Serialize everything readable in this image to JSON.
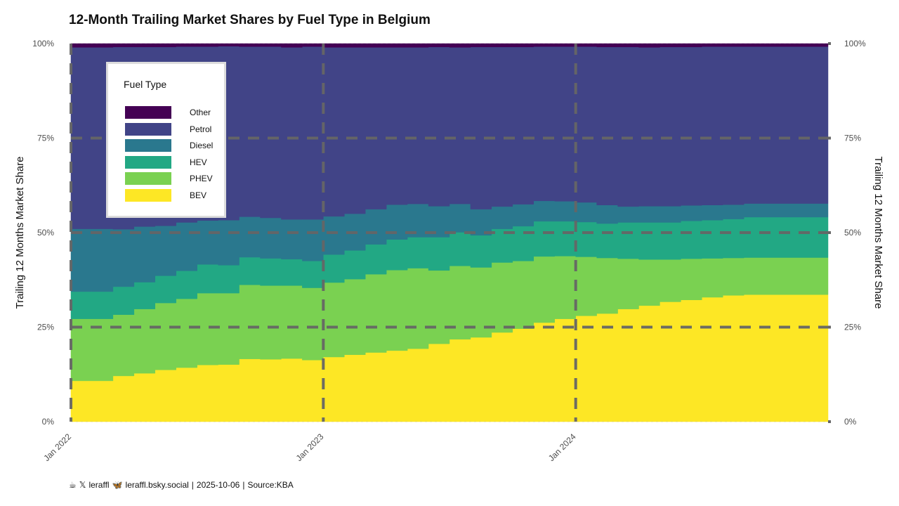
{
  "chart_data": {
    "type": "area",
    "title": "12-Month Trailing Market Shares by Fuel Type in Belgium",
    "ylabel": "Trailing 12 Months Market Share",
    "ylabel_right": "Trailing 12 Months Market Share",
    "ylim": [
      0,
      1
    ],
    "y_ticks": [
      "0%",
      "25%",
      "50%",
      "75%",
      "100%"
    ],
    "x_ticks": [
      "Jan 2022",
      "Jan 2023",
      "Jan 2024"
    ],
    "grid": true,
    "legend": {
      "title": "Fuel Type",
      "placement": "top-left",
      "entries": [
        "Other",
        "Petrol",
        "Diesel",
        "HEV",
        "PHEV",
        "BEV"
      ]
    },
    "x": [
      "2022-01",
      "2022-02",
      "2022-03",
      "2022-04",
      "2022-05",
      "2022-06",
      "2022-07",
      "2022-08",
      "2022-09",
      "2022-10",
      "2022-11",
      "2022-12",
      "2023-01",
      "2023-02",
      "2023-03",
      "2023-04",
      "2023-05",
      "2023-06",
      "2023-07",
      "2023-08",
      "2023-09",
      "2023-10",
      "2023-11",
      "2023-12",
      "2024-01",
      "2024-02",
      "2024-03",
      "2024-04",
      "2024-05",
      "2024-06",
      "2024-07",
      "2024-08",
      "2024-09",
      "2024-10",
      "2024-11",
      "2024-12"
    ],
    "series": [
      {
        "name": "BEV",
        "color": "#fde725",
        "values": [
          0.108,
          0.108,
          0.121,
          0.128,
          0.137,
          0.143,
          0.15,
          0.151,
          0.166,
          0.165,
          0.167,
          0.163,
          0.171,
          0.177,
          0.183,
          0.188,
          0.193,
          0.206,
          0.218,
          0.223,
          0.236,
          0.246,
          0.262,
          0.272,
          0.28,
          0.286,
          0.298,
          0.307,
          0.317,
          0.322,
          0.329,
          0.334,
          0.336,
          0.336,
          0.336,
          0.336
        ]
      },
      {
        "name": "PHEV",
        "color": "#7ad151",
        "values": [
          0.164,
          0.164,
          0.162,
          0.17,
          0.177,
          0.182,
          0.19,
          0.189,
          0.196,
          0.195,
          0.193,
          0.191,
          0.197,
          0.2,
          0.207,
          0.213,
          0.213,
          0.194,
          0.194,
          0.185,
          0.185,
          0.179,
          0.175,
          0.166,
          0.156,
          0.147,
          0.133,
          0.122,
          0.112,
          0.109,
          0.103,
          0.099,
          0.098,
          0.098,
          0.098,
          0.098
        ]
      },
      {
        "name": "HEV",
        "color": "#22a884",
        "values": [
          0.072,
          0.072,
          0.074,
          0.071,
          0.072,
          0.074,
          0.076,
          0.074,
          0.073,
          0.072,
          0.07,
          0.071,
          0.074,
          0.076,
          0.079,
          0.081,
          0.082,
          0.088,
          0.089,
          0.085,
          0.089,
          0.092,
          0.093,
          0.092,
          0.092,
          0.091,
          0.096,
          0.098,
          0.098,
          0.1,
          0.101,
          0.103,
          0.107,
          0.107,
          0.107,
          0.107
        ]
      },
      {
        "name": "Diesel",
        "color": "#2a788e",
        "values": [
          0.166,
          0.166,
          0.152,
          0.147,
          0.132,
          0.128,
          0.116,
          0.119,
          0.107,
          0.107,
          0.105,
          0.11,
          0.101,
          0.097,
          0.093,
          0.092,
          0.088,
          0.082,
          0.075,
          0.069,
          0.059,
          0.058,
          0.054,
          0.053,
          0.052,
          0.049,
          0.042,
          0.043,
          0.043,
          0.041,
          0.04,
          0.038,
          0.036,
          0.036,
          0.036,
          0.036
        ]
      },
      {
        "name": "Petrol",
        "color": "#414487",
        "values": [
          0.48,
          0.48,
          0.482,
          0.475,
          0.473,
          0.465,
          0.46,
          0.46,
          0.45,
          0.453,
          0.455,
          0.457,
          0.447,
          0.44,
          0.428,
          0.416,
          0.414,
          0.421,
          0.414,
          0.429,
          0.422,
          0.416,
          0.408,
          0.409,
          0.412,
          0.418,
          0.422,
          0.42,
          0.421,
          0.419,
          0.419,
          0.418,
          0.415,
          0.415,
          0.415,
          0.415
        ]
      },
      {
        "name": "Other",
        "color": "#440154",
        "values": [
          0.01,
          0.01,
          0.009,
          0.009,
          0.009,
          0.008,
          0.008,
          0.007,
          0.008,
          0.008,
          0.01,
          0.008,
          0.01,
          0.01,
          0.01,
          0.01,
          0.01,
          0.009,
          0.01,
          0.009,
          0.009,
          0.009,
          0.008,
          0.008,
          0.008,
          0.009,
          0.009,
          0.01,
          0.009,
          0.009,
          0.008,
          0.008,
          0.008,
          0.008,
          0.008,
          0.008
        ]
      }
    ]
  },
  "footer": {
    "handle_x": "leraffl",
    "handle_bsky": "leraffl.bsky.social",
    "sep1": "|",
    "date": "2025-10-06",
    "sep2": "|",
    "source_label": "Source:",
    "source_value": "KBA"
  }
}
